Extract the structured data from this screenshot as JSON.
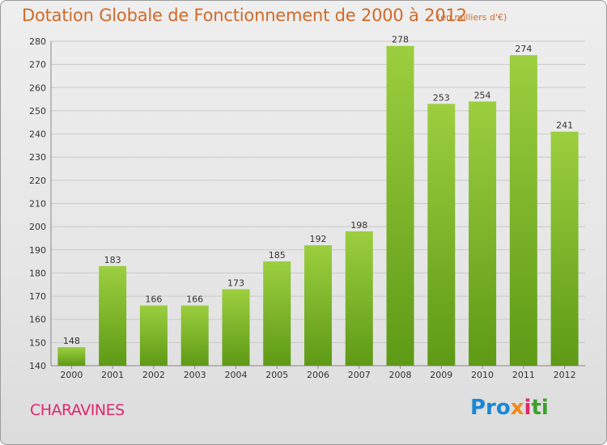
{
  "header": {
    "title": "Dotation Globale de Fonctionnement de 2000 à 2012",
    "unit": "(en milliers d'€)"
  },
  "footer": {
    "commune": "CHARAVINES",
    "logo_parts": [
      "Pro",
      "x",
      "i",
      "ti"
    ]
  },
  "colors": {
    "bar_light": "#9ccf3f",
    "bar_dark": "#5e9a16",
    "title": "#d06a29",
    "commune": "#e0286a"
  },
  "chart_data": {
    "type": "bar",
    "title": "Dotation Globale de Fonctionnement de 2000 à 2012",
    "subtitle": "(en milliers d'€)",
    "xlabel": "",
    "ylabel": "",
    "categories": [
      "2000",
      "2001",
      "2002",
      "2003",
      "2004",
      "2005",
      "2006",
      "2007",
      "2008",
      "2009",
      "2010",
      "2011",
      "2012"
    ],
    "values": [
      148,
      183,
      166,
      166,
      173,
      185,
      192,
      198,
      278,
      253,
      254,
      274,
      241
    ],
    "ylim": [
      140,
      280
    ],
    "yticks": [
      140,
      150,
      160,
      170,
      180,
      190,
      200,
      210,
      220,
      230,
      240,
      250,
      260,
      270,
      280
    ],
    "grid": true,
    "legend": "none"
  }
}
